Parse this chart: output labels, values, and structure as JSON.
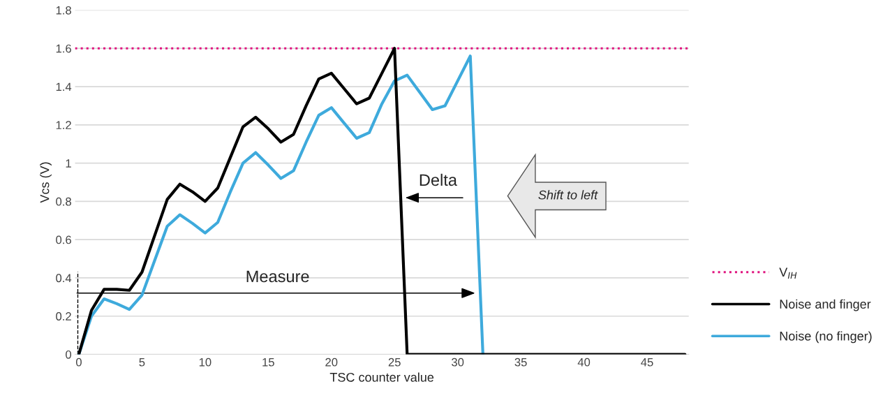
{
  "chart_data": {
    "type": "line",
    "xlabel": "TSC counter value",
    "ylabel": "Vcs (V)",
    "x": [
      0,
      1,
      2,
      3,
      4,
      5,
      6,
      7,
      8,
      9,
      10,
      11,
      12,
      13,
      14,
      15,
      16,
      17,
      18,
      19,
      20,
      21,
      22,
      23,
      24,
      25,
      26,
      27,
      28,
      29,
      30,
      31,
      32,
      33,
      34,
      35,
      36,
      37,
      38,
      39,
      40,
      41,
      42,
      43,
      44,
      45,
      46,
      47,
      48
    ],
    "series": [
      {
        "name": "Noise and finger",
        "color": "#000000",
        "values": [
          0,
          0.23,
          0.34,
          0.34,
          0.335,
          0.43,
          0.62,
          0.81,
          0.89,
          0.85,
          0.8,
          0.87,
          1.03,
          1.19,
          1.24,
          1.18,
          1.11,
          1.15,
          1.3,
          1.44,
          1.47,
          1.39,
          1.31,
          1.34,
          1.47,
          1.6,
          0,
          0,
          0,
          0,
          0,
          0,
          0,
          0,
          0,
          0,
          0,
          0,
          0,
          0,
          0,
          0,
          0,
          0,
          0,
          0,
          0,
          0,
          0
        ]
      },
      {
        "name": "Noise (no finger)",
        "color": "#3eaadc",
        "values": [
          0,
          0.2,
          0.29,
          0.265,
          0.235,
          0.31,
          0.49,
          0.67,
          0.73,
          0.685,
          0.635,
          0.69,
          0.85,
          1.0,
          1.055,
          0.99,
          0.92,
          0.96,
          1.11,
          1.25,
          1.29,
          1.21,
          1.13,
          1.16,
          1.31,
          1.43,
          1.46,
          1.37,
          1.28,
          1.3,
          1.43,
          1.56,
          0,
          null,
          null,
          null,
          null,
          null,
          null,
          null,
          null,
          null,
          null,
          null,
          null,
          null,
          null,
          null,
          null
        ]
      }
    ],
    "ref_lines": [
      {
        "axis": "y",
        "value": 1.6,
        "label": "V$_{IH}$",
        "color": "#e0157f",
        "line_style": "dotted"
      }
    ],
    "annotations": [
      "Measure",
      "Delta",
      "Shift to left"
    ],
    "xlim": [
      -0.3,
      48.3
    ],
    "xticks": [
      0,
      5,
      10,
      15,
      20,
      25,
      30,
      35,
      40,
      45
    ],
    "ylim": [
      0,
      1.8
    ],
    "yticks": [
      0,
      0.2,
      0.4,
      0.6,
      0.8,
      1,
      1.2,
      1.4,
      1.6,
      1.8
    ],
    "grid": "y",
    "legend": "right",
    "marker": "none",
    "line_style": "solid"
  }
}
